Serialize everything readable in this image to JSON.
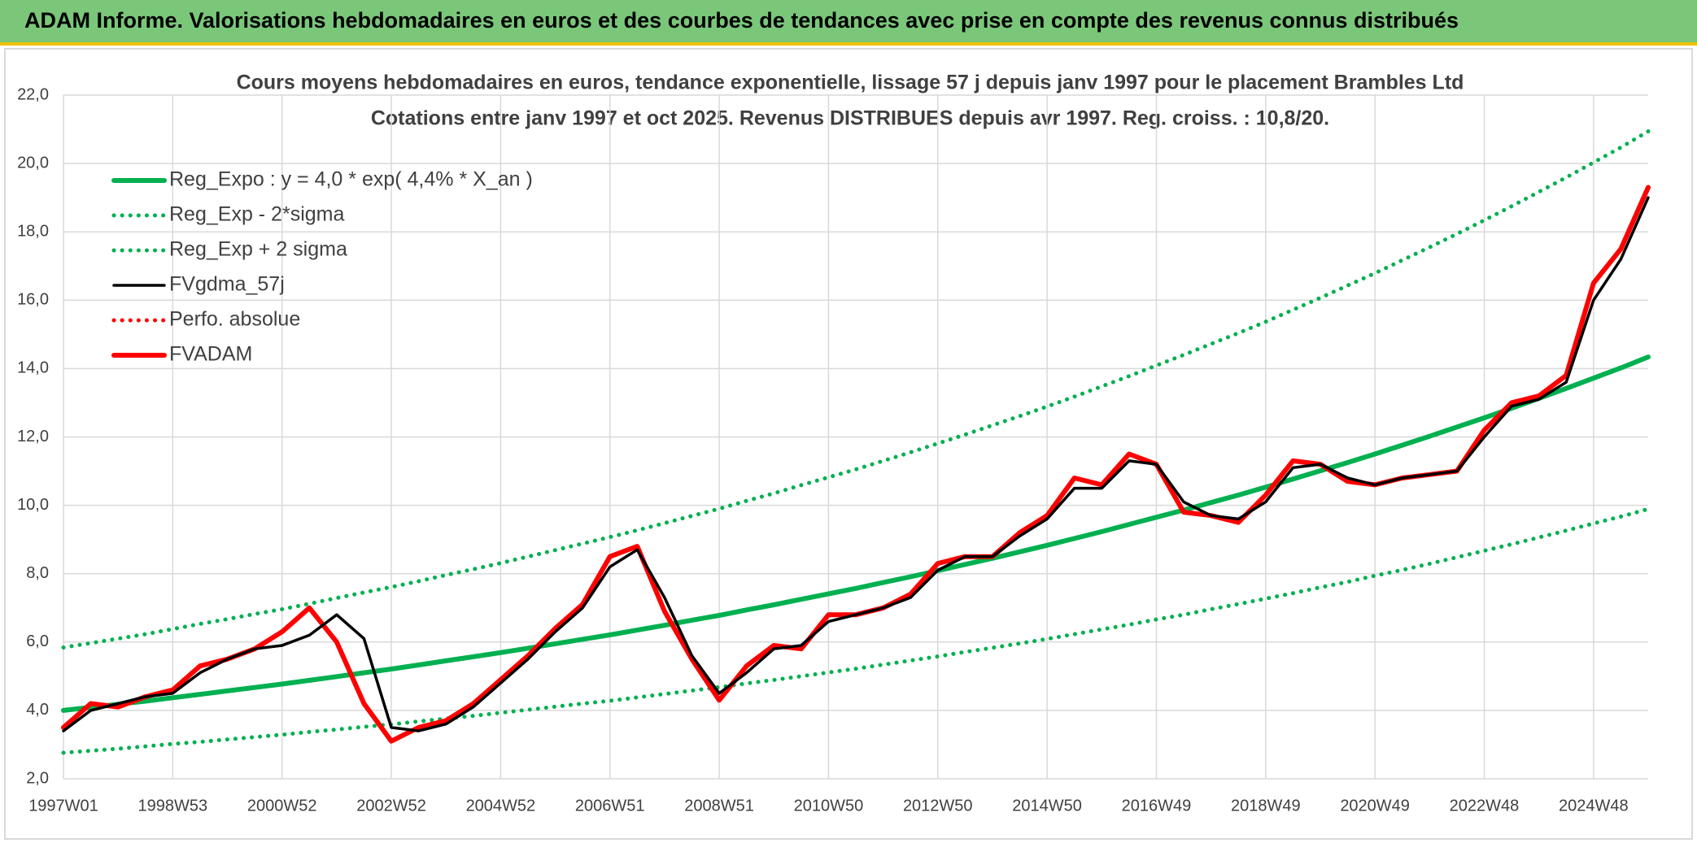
{
  "header": {
    "title": "ADAM Informe. Valorisations hebdomadaires en euros et des courbes de tendances avec prise en compte des revenus connus distribués"
  },
  "chart_data": {
    "type": "line",
    "title": "Cours moyens hebdomadaires en euros, tendance exponentielle, lissage 57 j depuis janv 1997 pour le placement Brambles Ltd",
    "subtitle": "Cotations entre janv 1997 et oct 2025. Revenus DISTRIBUES depuis avr 1997. Reg. croiss. : 10,8/20.",
    "categories": [
      "1997W01",
      null,
      null,
      null,
      "1998W53",
      null,
      null,
      null,
      "2000W52",
      null,
      null,
      null,
      "2002W52",
      null,
      null,
      null,
      "2004W52",
      null,
      null,
      null,
      "2006W51",
      null,
      null,
      null,
      "2008W51",
      null,
      null,
      null,
      "2010W50",
      null,
      null,
      null,
      "2012W50",
      null,
      null,
      null,
      "2014W50",
      null,
      null,
      null,
      "2016W49",
      null,
      null,
      null,
      "2018W49",
      null,
      null,
      null,
      "2020W49",
      null,
      null,
      null,
      "2022W48",
      null,
      null,
      null,
      "2024W48",
      null,
      null
    ],
    "ylim": [
      2,
      22
    ],
    "yticks": [
      {
        "value": 2,
        "label": "2,0"
      },
      {
        "value": 4,
        "label": "4,0"
      },
      {
        "value": 6,
        "label": "6,0"
      },
      {
        "value": 8,
        "label": "8,0"
      },
      {
        "value": 10,
        "label": "10,0"
      },
      {
        "value": 12,
        "label": "12,0"
      },
      {
        "value": 14,
        "label": "14,0"
      },
      {
        "value": 16,
        "label": "16,0"
      },
      {
        "value": 18,
        "label": "18,0"
      },
      {
        "value": 20,
        "label": "20,0"
      },
      {
        "value": 22,
        "label": "22,0"
      }
    ],
    "grid": true,
    "legend": "top-left",
    "series": [
      {
        "name": "Reg_Expo : y = 4,0 * exp( 4,4% *  X_an )",
        "color": "#00b050",
        "style": "thick",
        "values": [
          4.0,
          4.09,
          4.18,
          4.27,
          4.37,
          4.47,
          4.57,
          4.67,
          4.77,
          4.88,
          4.99,
          5.1,
          5.21,
          5.33,
          5.45,
          5.57,
          5.69,
          5.82,
          5.95,
          6.08,
          6.21,
          6.35,
          6.49,
          6.64,
          6.78,
          6.94,
          7.09,
          7.25,
          7.41,
          7.57,
          7.74,
          7.91,
          8.09,
          8.27,
          8.45,
          8.64,
          8.83,
          9.03,
          9.23,
          9.44,
          9.65,
          9.86,
          10.08,
          10.3,
          10.53,
          10.77,
          11.01,
          11.25,
          11.5,
          11.76,
          12.02,
          12.29,
          12.56,
          12.84,
          13.13,
          13.42,
          13.72,
          14.02,
          14.34
        ]
      },
      {
        "name": "Reg_Exp - 2*sigma",
        "color": "#00b050",
        "style": "dotted",
        "values": [
          2.76,
          2.82,
          2.88,
          2.95,
          3.02,
          3.08,
          3.15,
          3.22,
          3.29,
          3.37,
          3.44,
          3.52,
          3.59,
          3.68,
          3.76,
          3.84,
          3.93,
          4.02,
          4.11,
          4.2,
          4.28,
          4.38,
          4.48,
          4.58,
          4.68,
          4.79,
          4.89,
          5.0,
          5.11,
          5.22,
          5.34,
          5.46,
          5.58,
          5.71,
          5.83,
          5.96,
          6.09,
          6.23,
          6.37,
          6.51,
          6.66,
          6.8,
          6.96,
          7.11,
          7.27,
          7.43,
          7.6,
          7.76,
          7.94,
          8.11,
          8.29,
          8.48,
          8.67,
          8.86,
          9.06,
          9.26,
          9.47,
          9.67,
          9.89
        ]
      },
      {
        "name": "Reg_Exp + 2 sigma",
        "color": "#00b050",
        "style": "dotted",
        "values": [
          5.84,
          5.97,
          6.1,
          6.23,
          6.38,
          6.53,
          6.67,
          6.82,
          6.96,
          7.12,
          7.29,
          7.45,
          7.61,
          7.78,
          7.96,
          8.13,
          8.31,
          8.5,
          8.69,
          8.88,
          9.07,
          9.27,
          9.48,
          9.69,
          9.9,
          10.13,
          10.35,
          10.59,
          10.82,
          11.05,
          11.3,
          11.55,
          11.81,
          12.07,
          12.34,
          12.61,
          12.89,
          13.18,
          13.48,
          13.78,
          14.09,
          14.4,
          14.72,
          15.04,
          15.37,
          15.72,
          16.07,
          16.43,
          16.79,
          17.17,
          17.55,
          17.94,
          18.34,
          18.75,
          19.17,
          19.59,
          20.03,
          20.47,
          20.94
        ]
      },
      {
        "name": "FVgdma_57j",
        "color": "#000000",
        "style": "thin",
        "values": [
          3.4,
          4.0,
          4.2,
          4.4,
          4.5,
          5.1,
          5.5,
          5.8,
          5.9,
          6.2,
          6.8,
          6.1,
          3.5,
          3.4,
          3.6,
          4.1,
          4.8,
          5.5,
          6.3,
          7.0,
          8.2,
          8.7,
          7.3,
          5.6,
          4.5,
          5.1,
          5.8,
          5.9,
          6.6,
          6.8,
          7.0,
          7.3,
          8.1,
          8.5,
          8.5,
          9.1,
          9.6,
          10.5,
          10.5,
          11.3,
          11.2,
          10.1,
          9.7,
          9.6,
          10.1,
          11.1,
          11.2,
          10.8,
          10.6,
          10.8,
          10.9,
          11.0,
          12.0,
          12.9,
          13.1,
          13.6,
          16.0,
          17.2,
          19.0
        ]
      },
      {
        "name": "Perfo. absolue",
        "color": "#ff0000",
        "style": "dotted",
        "values": [
          3.5,
          4.2,
          4.1,
          4.4,
          4.6,
          5.3,
          5.5,
          5.8,
          6.3,
          7.0,
          6.0,
          4.2,
          3.1,
          3.5,
          3.7,
          4.2,
          4.9,
          5.6,
          6.4,
          7.1,
          8.5,
          8.8,
          6.9,
          5.5,
          4.3,
          5.3,
          5.9,
          5.8,
          6.8,
          6.8,
          7.0,
          7.4,
          8.3,
          8.5,
          8.5,
          9.2,
          9.7,
          10.8,
          10.6,
          11.5,
          11.2,
          9.8,
          9.7,
          9.5,
          10.3,
          11.3,
          11.2,
          10.7,
          10.6,
          10.8,
          10.9,
          11.0,
          12.2,
          13.0,
          13.2,
          13.8,
          16.5,
          17.5,
          19.3
        ]
      },
      {
        "name": "FVADAM",
        "color": "#ff0000",
        "style": "thick",
        "values": [
          3.5,
          4.2,
          4.1,
          4.4,
          4.6,
          5.3,
          5.5,
          5.8,
          6.3,
          7.0,
          6.0,
          4.2,
          3.1,
          3.5,
          3.7,
          4.2,
          4.9,
          5.6,
          6.4,
          7.1,
          8.5,
          8.8,
          6.9,
          5.5,
          4.3,
          5.3,
          5.9,
          5.8,
          6.8,
          6.8,
          7.0,
          7.4,
          8.3,
          8.5,
          8.5,
          9.2,
          9.7,
          10.8,
          10.6,
          11.5,
          11.2,
          9.8,
          9.7,
          9.5,
          10.3,
          11.3,
          11.2,
          10.7,
          10.6,
          10.8,
          10.9,
          11.0,
          12.2,
          13.0,
          13.2,
          13.8,
          16.5,
          17.5,
          19.3
        ]
      }
    ]
  }
}
